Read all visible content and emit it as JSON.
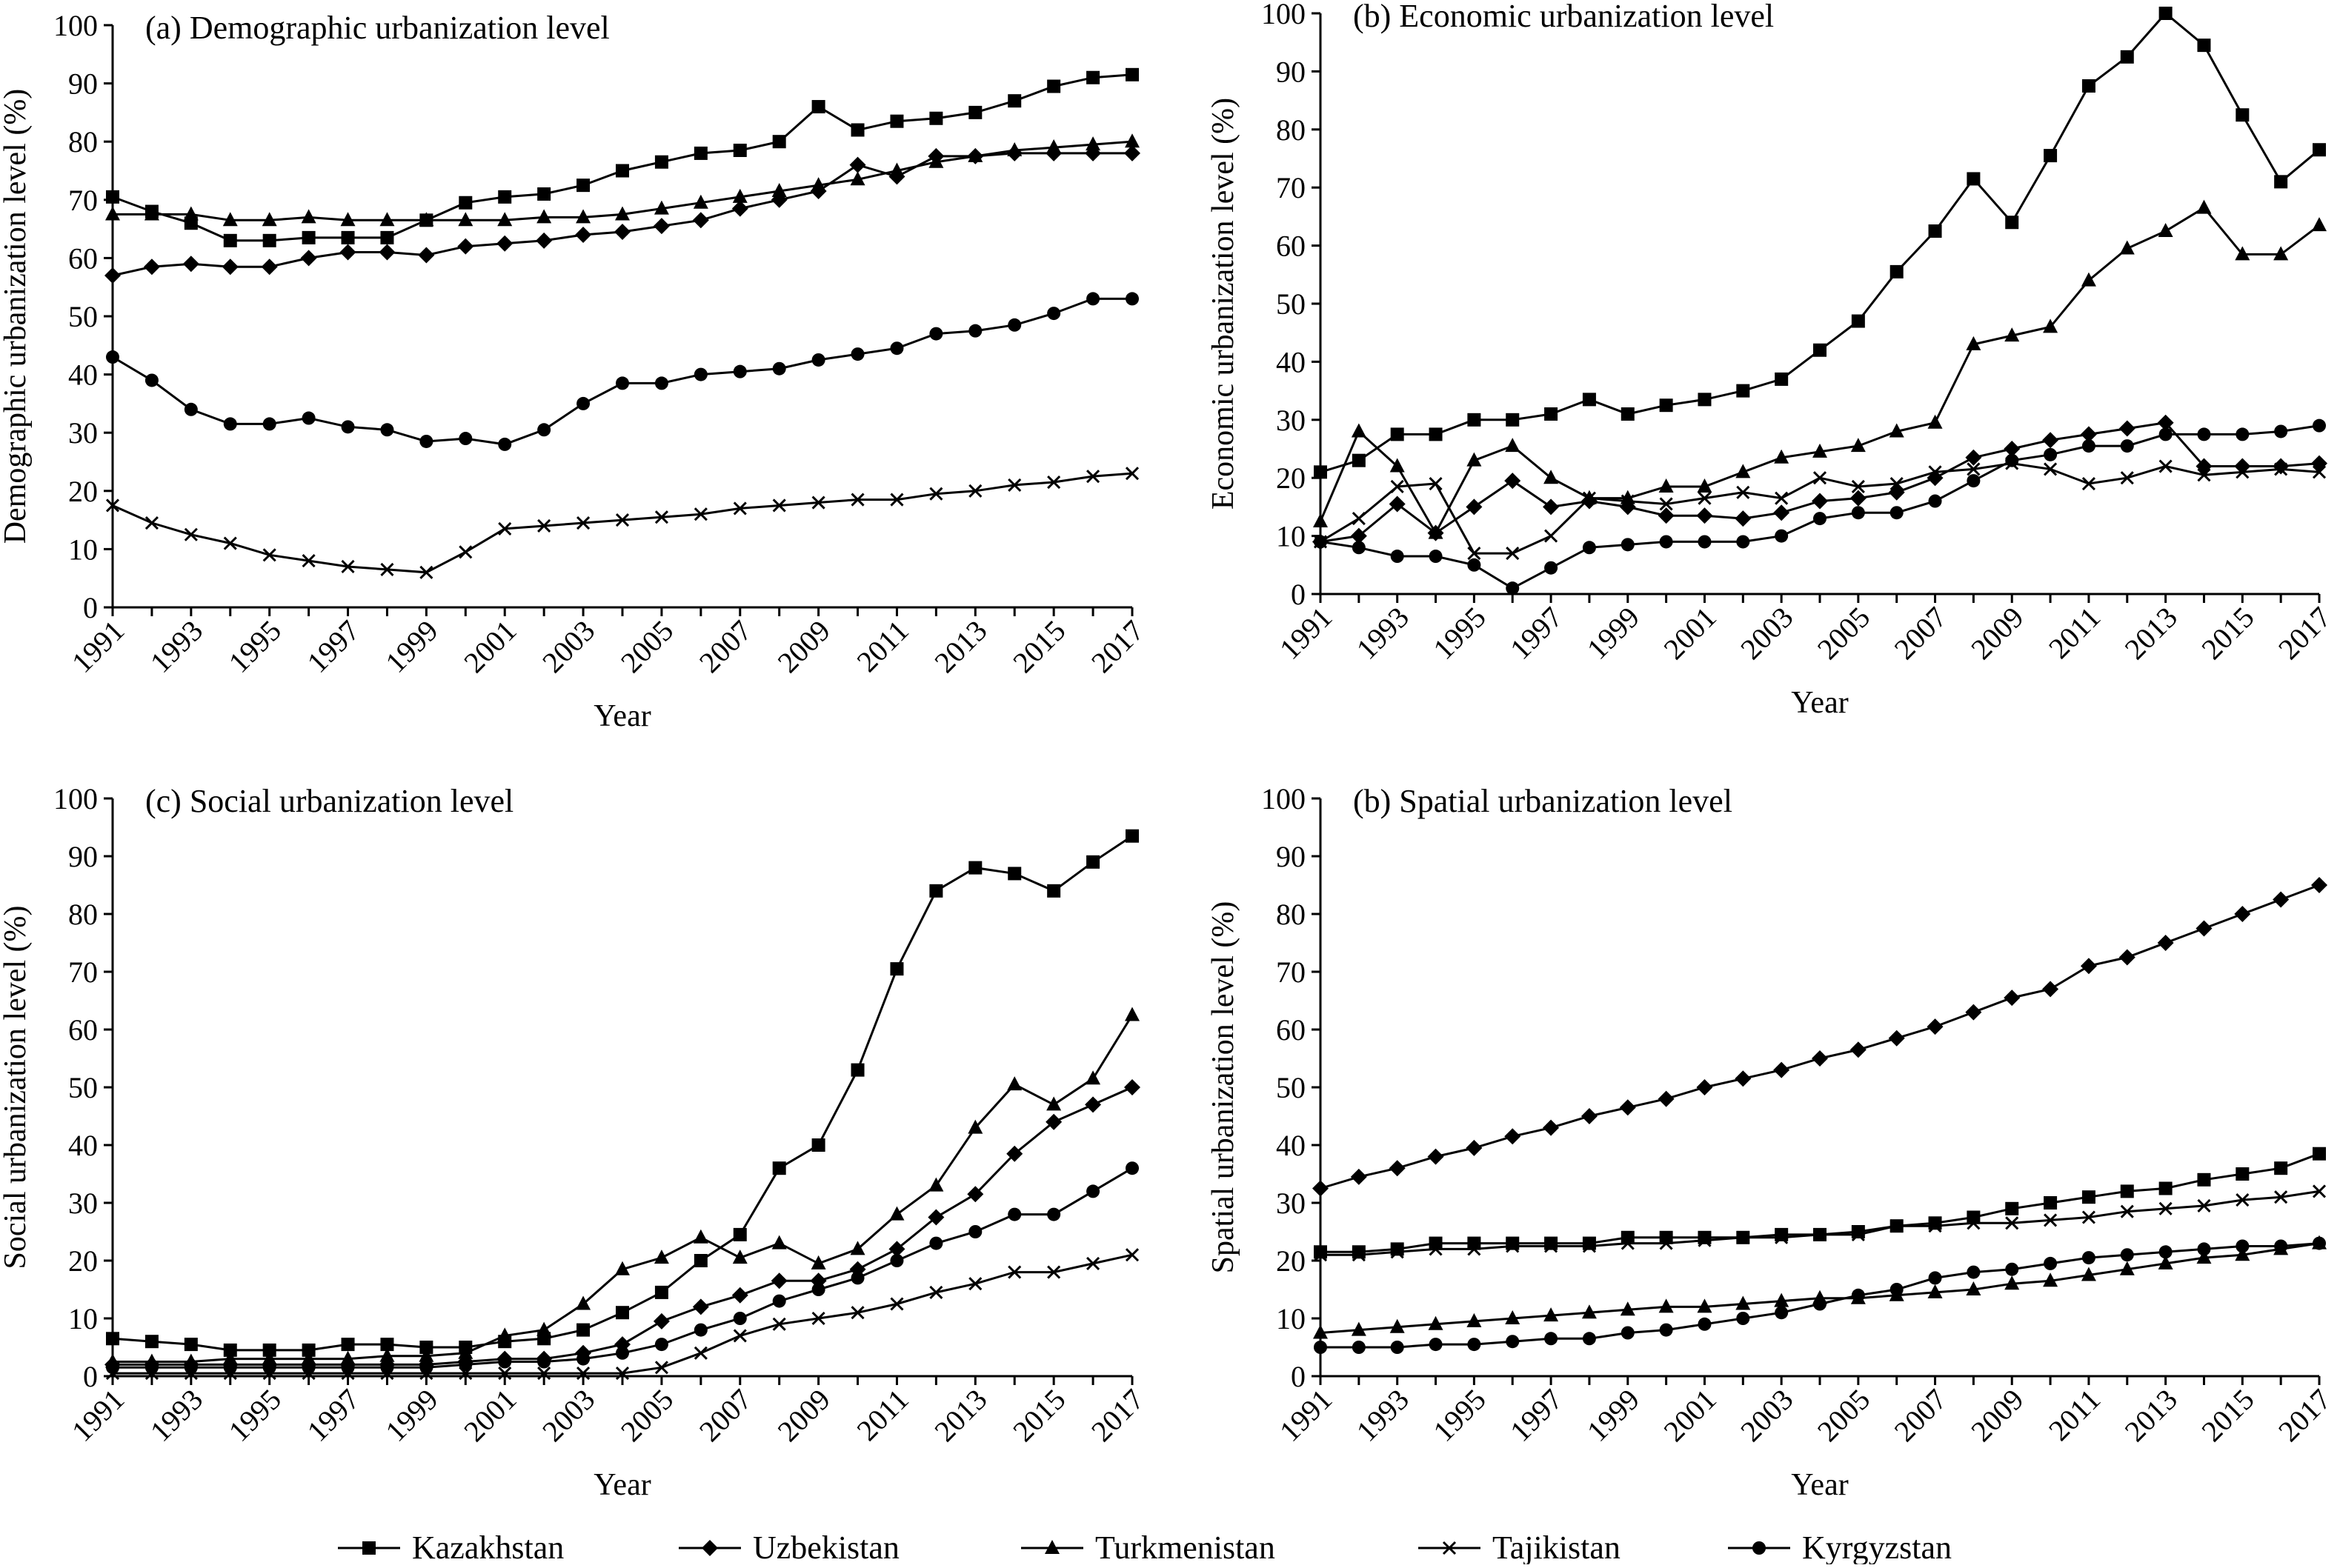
{
  "legend": [
    "Kazakhstan",
    "Uzbekistan",
    "Turkmenistan",
    "Tajikistan",
    "Kyrgyzstan"
  ],
  "chart_data": [
    {
      "type": "line",
      "title": "(a) Demographic urbanization level",
      "xlabel": "Year",
      "ylabel": "Demographic urbanization level (%)",
      "ylim": [
        0,
        100
      ],
      "yticks": [
        0,
        10,
        20,
        30,
        40,
        50,
        60,
        70,
        80,
        90,
        100
      ],
      "x": [
        1991,
        1992,
        1993,
        1994,
        1995,
        1996,
        1997,
        1998,
        1999,
        2000,
        2001,
        2002,
        2003,
        2004,
        2005,
        2006,
        2007,
        2008,
        2009,
        2010,
        2011,
        2012,
        2013,
        2014,
        2015,
        2016,
        2017
      ],
      "xticks": [
        "1991",
        "1993",
        "1995",
        "1997",
        "1999",
        "2001",
        "2003",
        "2005",
        "2007",
        "2009",
        "2011",
        "2013",
        "2015",
        "2017"
      ],
      "series": [
        {
          "name": "Kazakhstan",
          "marker": "square",
          "values": [
            70.5,
            68,
            66,
            63,
            63,
            63.5,
            63.5,
            63.5,
            66.5,
            69.5,
            70.5,
            71,
            72.5,
            75,
            76.5,
            78,
            78.5,
            80,
            86,
            82,
            83.5,
            84,
            85,
            87,
            89.5,
            91,
            91.5
          ]
        },
        {
          "name": "Uzbekistan",
          "marker": "diamond",
          "values": [
            57,
            58.5,
            59,
            58.5,
            58.5,
            60,
            61,
            61,
            60.5,
            62,
            62.5,
            63,
            64,
            64.5,
            65.5,
            66.5,
            68.5,
            70,
            71.5,
            76,
            74,
            77.5,
            77.5,
            78,
            78,
            78,
            78
          ]
        },
        {
          "name": "Turkmenistan",
          "marker": "triangle",
          "values": [
            67.5,
            67.5,
            67.5,
            66.5,
            66.5,
            67,
            66.5,
            66.5,
            66.5,
            66.5,
            66.5,
            67,
            67,
            67.5,
            68.5,
            69.5,
            70.5,
            71.5,
            72.5,
            73.5,
            75,
            76.5,
            77.5,
            78.5,
            79,
            79.5,
            80
          ]
        },
        {
          "name": "Tajikistan",
          "marker": "cross",
          "values": [
            17.5,
            14.5,
            12.5,
            11,
            9,
            8,
            7,
            6.5,
            6,
            9.5,
            13.5,
            14,
            14.5,
            15,
            15.5,
            16,
            17,
            17.5,
            18,
            18.5,
            18.5,
            19.5,
            20,
            21,
            21.5,
            22.5,
            23
          ]
        },
        {
          "name": "Kyrgyzstan",
          "marker": "circle",
          "values": [
            43,
            39,
            34,
            31.5,
            31.5,
            32.5,
            31,
            30.5,
            28.5,
            29,
            28,
            30.5,
            35,
            38.5,
            38.5,
            40,
            40.5,
            41,
            42.5,
            43.5,
            44.5,
            47,
            47.5,
            48.5,
            50.5,
            53,
            53
          ]
        }
      ]
    },
    {
      "type": "line",
      "title": "(b) Economic urbanization level",
      "xlabel": "Year",
      "ylabel": "Economic urbanization level (%)",
      "ylim": [
        0,
        100
      ],
      "yticks": [
        0,
        10,
        20,
        30,
        40,
        50,
        60,
        70,
        80,
        90,
        100
      ],
      "x": [
        1991,
        1992,
        1993,
        1994,
        1995,
        1996,
        1997,
        1998,
        1999,
        2000,
        2001,
        2002,
        2003,
        2004,
        2005,
        2006,
        2007,
        2008,
        2009,
        2010,
        2011,
        2012,
        2013,
        2014,
        2015,
        2016,
        2017
      ],
      "xticks": [
        "1991",
        "1993",
        "1995",
        "1997",
        "1999",
        "2001",
        "2003",
        "2005",
        "2007",
        "2009",
        "2011",
        "2013",
        "2015",
        "2017"
      ],
      "series": [
        {
          "name": "Kazakhstan",
          "marker": "square",
          "values": [
            21,
            23,
            27.5,
            27.5,
            30,
            30,
            31,
            33.5,
            31,
            32.5,
            33.5,
            35,
            37,
            42,
            47,
            55.5,
            62.5,
            71.5,
            64,
            75.5,
            87.5,
            92.5,
            100,
            94.5,
            82.5,
            71,
            76.5
          ]
        },
        {
          "name": "Uzbekistan",
          "marker": "diamond",
          "values": [
            9,
            10,
            15.5,
            10.5,
            15,
            19.5,
            15,
            16,
            15,
            13.5,
            13.5,
            13,
            14,
            16,
            16.5,
            17.5,
            20,
            23.5,
            25,
            26.5,
            27.5,
            28.5,
            29.5,
            22,
            22,
            22,
            22.5
          ]
        },
        {
          "name": "Turkmenistan",
          "marker": "triangle",
          "values": [
            12.5,
            28,
            22,
            10.5,
            23,
            25.5,
            20,
            16.5,
            16.5,
            18.5,
            18.5,
            21,
            23.5,
            24.5,
            25.5,
            28,
            29.5,
            43,
            44.5,
            46,
            54,
            59.5,
            62.5,
            66.5,
            58.5,
            58.5,
            63.5
          ]
        },
        {
          "name": "Tajikistan",
          "marker": "cross",
          "values": [
            9,
            13,
            18.5,
            19,
            7,
            7,
            10,
            16.5,
            16,
            15.5,
            16.5,
            17.5,
            16.5,
            20,
            18.5,
            19,
            21,
            21.5,
            22.5,
            21.5,
            19,
            20,
            22,
            20.5,
            21,
            21.5,
            21
          ]
        },
        {
          "name": "Kyrgyzstan",
          "marker": "circle",
          "values": [
            9,
            8,
            6.5,
            6.5,
            5,
            1,
            4.5,
            8,
            8.5,
            9,
            9,
            9,
            10,
            13,
            14,
            14,
            16,
            19.5,
            23,
            24,
            25.5,
            25.5,
            27.5,
            27.5,
            27.5,
            28,
            29
          ]
        }
      ]
    },
    {
      "type": "line",
      "title": "(c) Social urbanization level",
      "xlabel": "Year",
      "ylabel": "Social urbanization level (%)",
      "ylim": [
        0,
        100
      ],
      "yticks": [
        0,
        10,
        20,
        30,
        40,
        50,
        60,
        70,
        80,
        90,
        100
      ],
      "x": [
        1991,
        1992,
        1993,
        1994,
        1995,
        1996,
        1997,
        1998,
        1999,
        2000,
        2001,
        2002,
        2003,
        2004,
        2005,
        2006,
        2007,
        2008,
        2009,
        2010,
        2011,
        2012,
        2013,
        2014,
        2015,
        2016,
        2017
      ],
      "xticks": [
        "1991",
        "1993",
        "1995",
        "1997",
        "1999",
        "2001",
        "2003",
        "2005",
        "2007",
        "2009",
        "2011",
        "2013",
        "2015",
        "2017"
      ],
      "series": [
        {
          "name": "Kazakhstan",
          "marker": "square",
          "values": [
            6.5,
            6,
            5.5,
            4.5,
            4.5,
            4.5,
            5.5,
            5.5,
            5,
            5,
            6,
            6.5,
            8,
            11,
            14.5,
            20,
            24.5,
            36,
            40,
            53,
            70.5,
            84,
            88,
            87,
            84,
            89,
            93.5
          ]
        },
        {
          "name": "Uzbekistan",
          "marker": "diamond",
          "values": [
            2,
            2,
            2,
            2,
            2,
            2,
            2,
            2,
            2,
            2.5,
            3,
            3,
            4,
            5.5,
            9.5,
            12,
            14,
            16.5,
            16.5,
            18.5,
            22,
            27.5,
            31.5,
            38.5,
            44,
            47,
            50
          ]
        },
        {
          "name": "Turkmenistan",
          "marker": "triangle",
          "values": [
            2.5,
            2.5,
            2.5,
            3,
            3,
            3,
            3,
            3.5,
            3.5,
            4,
            7,
            8,
            12.5,
            18.5,
            20.5,
            24,
            20.5,
            23,
            19.5,
            22,
            28,
            33,
            43,
            50.5,
            47,
            51.5,
            62.5
          ]
        },
        {
          "name": "Tajikistan",
          "marker": "cross",
          "values": [
            0.5,
            0.5,
            0.5,
            0.5,
            0.5,
            0.5,
            0.5,
            0.5,
            0.5,
            0.5,
            0.5,
            0.5,
            0.5,
            0.5,
            1.5,
            4,
            7,
            9,
            10,
            11,
            12.5,
            14.5,
            16,
            18,
            18,
            19.5,
            21
          ]
        },
        {
          "name": "Kyrgyzstan",
          "marker": "circle",
          "values": [
            1.5,
            1.5,
            1.5,
            1.5,
            1.5,
            1.5,
            1.5,
            1.5,
            1.5,
            2,
            2.5,
            2.5,
            3,
            4,
            5.5,
            8,
            10,
            13,
            15,
            17,
            20,
            23,
            25,
            28,
            28,
            32,
            36
          ]
        }
      ]
    },
    {
      "type": "line",
      "title": "(b) Spatial urbanization level",
      "xlabel": "Year",
      "ylabel": "Spatial urbanization level (%)",
      "ylim": [
        0,
        100
      ],
      "yticks": [
        0,
        10,
        20,
        30,
        40,
        50,
        60,
        70,
        80,
        90,
        100
      ],
      "x": [
        1991,
        1992,
        1993,
        1994,
        1995,
        1996,
        1997,
        1998,
        1999,
        2000,
        2001,
        2002,
        2003,
        2004,
        2005,
        2006,
        2007,
        2008,
        2009,
        2010,
        2011,
        2012,
        2013,
        2014,
        2015,
        2016,
        2017
      ],
      "xticks": [
        "1991",
        "1993",
        "1995",
        "1997",
        "1999",
        "2001",
        "2003",
        "2005",
        "2007",
        "2009",
        "2011",
        "2013",
        "2015",
        "2017"
      ],
      "series": [
        {
          "name": "Kazakhstan",
          "marker": "square",
          "values": [
            21.5,
            21.5,
            22,
            23,
            23,
            23,
            23,
            23,
            24,
            24,
            24,
            24,
            24.5,
            24.5,
            25,
            26,
            26.5,
            27.5,
            29,
            30,
            31,
            32,
            32.5,
            34,
            35,
            36,
            38.5
          ]
        },
        {
          "name": "Uzbekistan",
          "marker": "diamond",
          "values": [
            32.5,
            34.5,
            36,
            38,
            39.5,
            41.5,
            43,
            45,
            46.5,
            48,
            50,
            51.5,
            53,
            55,
            56.5,
            58.5,
            60.5,
            63,
            65.5,
            67,
            71,
            72.5,
            75,
            77.5,
            80,
            82.5,
            85
          ]
        },
        {
          "name": "Turkmenistan",
          "marker": "triangle",
          "values": [
            7.5,
            8,
            8.5,
            9,
            9.5,
            10,
            10.5,
            11,
            11.5,
            12,
            12,
            12.5,
            13,
            13.5,
            13.5,
            14,
            14.5,
            15,
            16,
            16.5,
            17.5,
            18.5,
            19.5,
            20.5,
            21,
            22,
            23
          ]
        },
        {
          "name": "Tajikistan",
          "marker": "cross",
          "values": [
            21,
            21,
            21.5,
            22,
            22,
            22.5,
            22.5,
            22.5,
            23,
            23,
            23.5,
            24,
            24,
            24.5,
            24.5,
            26,
            26,
            26.5,
            26.5,
            27,
            27.5,
            28.5,
            29,
            29.5,
            30.5,
            31,
            32
          ]
        },
        {
          "name": "Kyrgyzstan",
          "marker": "circle",
          "values": [
            5,
            5,
            5,
            5.5,
            5.5,
            6,
            6.5,
            6.5,
            7.5,
            8,
            9,
            10,
            11,
            12.5,
            14,
            15,
            17,
            18,
            18.5,
            19.5,
            20.5,
            21,
            21.5,
            22,
            22.5,
            22.5,
            23
          ]
        }
      ]
    }
  ]
}
